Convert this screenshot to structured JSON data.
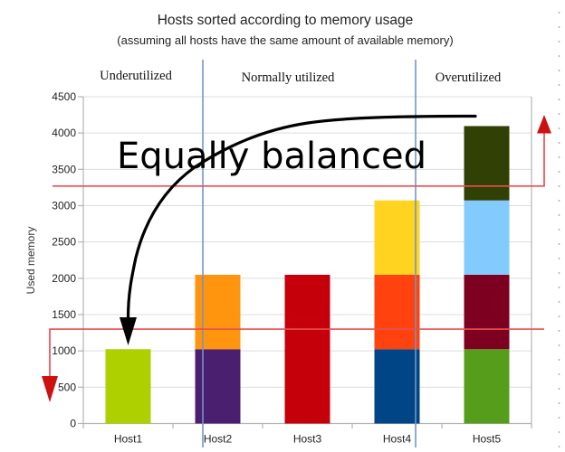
{
  "chart_data": {
    "type": "bar",
    "stacked": true,
    "title": "Hosts sorted according to memory usage",
    "subtitle": "(assuming all hosts have the same amount of available memory)",
    "xlabel": "",
    "ylabel": "Used memory",
    "ylim": [
      0,
      4500
    ],
    "ytick_step": 500,
    "grid": "horizontal",
    "legend": "none",
    "categories": [
      "Host1",
      "Host2",
      "Host3",
      "Host4",
      "Host5"
    ],
    "bars": [
      {
        "category": "Host1",
        "total": 1024,
        "segments": [
          {
            "value": 1024,
            "color": "#AECF00"
          }
        ]
      },
      {
        "category": "Host2",
        "total": 2048,
        "segments": [
          {
            "value": 1024,
            "color": "#4B1F6F"
          },
          {
            "value": 1024,
            "color": "#FF950E"
          }
        ]
      },
      {
        "category": "Host3",
        "total": 2048,
        "segments": [
          {
            "value": 2048,
            "color": "#C5000B"
          }
        ]
      },
      {
        "category": "Host4",
        "total": 3072,
        "segments": [
          {
            "value": 1024,
            "color": "#004586"
          },
          {
            "value": 1024,
            "color": "#FF420E"
          },
          {
            "value": 1024,
            "color": "#FFD320"
          }
        ]
      },
      {
        "category": "Host5",
        "total": 4096,
        "segments": [
          {
            "value": 1024,
            "color": "#579D1C"
          },
          {
            "value": 1024,
            "color": "#7E0021"
          },
          {
            "value": 1024,
            "color": "#83CAFF"
          },
          {
            "value": 1024,
            "color": "#314004"
          }
        ]
      }
    ],
    "thresholds": [
      {
        "name": "overutilization-threshold",
        "value": 3270,
        "arrow": "up-right"
      },
      {
        "name": "underutilization-threshold",
        "value": 1300,
        "arrow": "down-left"
      }
    ],
    "zones": [
      {
        "label": "Underutilized"
      },
      {
        "label": "Normally utilized"
      },
      {
        "label": "Overutilized"
      }
    ],
    "annotations": [
      {
        "text": "Equally balanced"
      }
    ]
  },
  "colors": {
    "zone_divider": "#7495c6",
    "threshold_line": "#e85050",
    "threshold_arrow": "#cc1111",
    "grid_line": "#dcdcdc",
    "axis_line": "#b3b3b3",
    "annotation_arrow": "#000000",
    "page_edge_dots": "#b3b3b3"
  }
}
